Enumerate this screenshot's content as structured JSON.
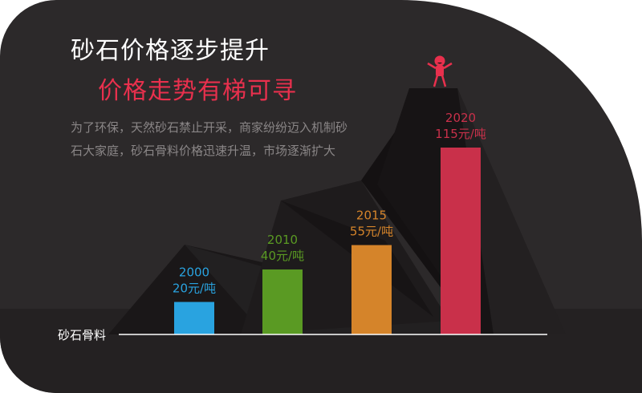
{
  "title": "砂石价格逐步提升",
  "subtitle": "价格走势有梯可寻",
  "description": "为了环保，天然砂石禁止开采，商家纷纷迈入机制砂石大家庭，砂石骨料价格迅速升温，市场逐渐扩大",
  "chart_data": {
    "type": "bar",
    "categories": [
      "2000",
      "2010",
      "2015",
      "2020"
    ],
    "values": [
      20,
      40,
      55,
      115
    ],
    "value_labels": [
      "20元/吨",
      "40元/吨",
      "55元/吨",
      "115元/吨"
    ],
    "colors": [
      "#29a3e0",
      "#5a9a23",
      "#d5842a",
      "#c9304a"
    ],
    "xlabel": "砂石骨料",
    "unit": "元/吨",
    "ylim": [
      0,
      120
    ],
    "grid": false,
    "legend": "none"
  },
  "icons": {
    "mascot": "cheering-person-icon"
  },
  "accent": "#e8304d"
}
